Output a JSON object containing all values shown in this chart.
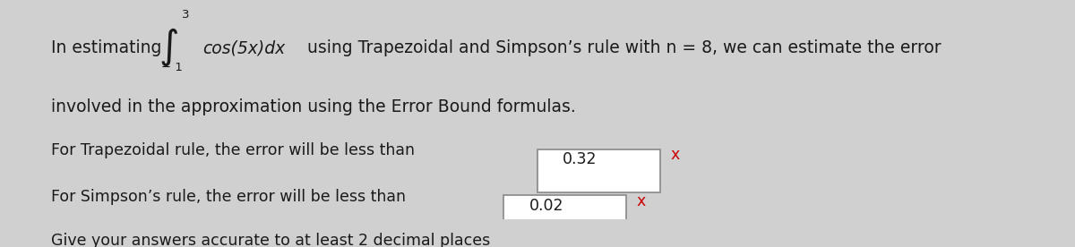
{
  "background_color": "#d0d0d0",
  "line1_prefix": "In estimating",
  "integral_lower": "− 1",
  "integral_upper": "3",
  "integral_body": "cos(5x)dx",
  "line1_suffix": " using Trapezoidal and Simpson’s rule with n = 8, we can estimate the error",
  "line2": "involved in the approximation using the Error Bound formulas.",
  "trap_label": "For Trapezoidal rule, the error will be less than",
  "trap_value": "0.32",
  "simp_label": "For Simpson’s rule, the error will be less than",
  "simp_value": "0.02",
  "footer": "Give your answers accurate to at least 2 decimal places",
  "text_color": "#1a1a1a",
  "box_color": "#ffffff",
  "box_border": "#888888",
  "x_color": "#cc0000",
  "font_size_main": 13.5,
  "font_size_small": 12.5
}
